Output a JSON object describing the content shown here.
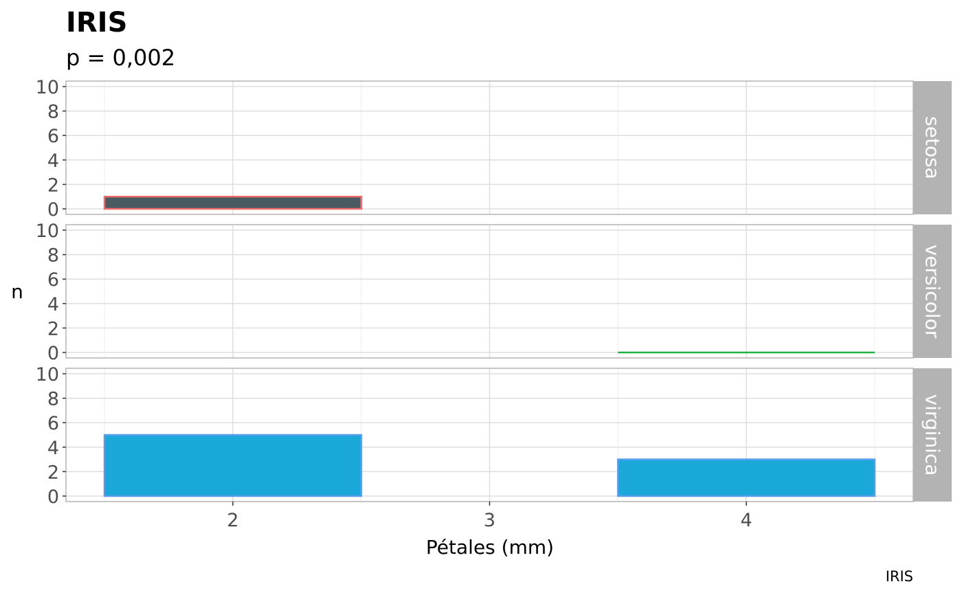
{
  "chart_data": {
    "type": "bar",
    "title": "IRIS",
    "subtitle": "p = 0,002",
    "caption": "IRIS",
    "xlabel": "Pétales (mm)",
    "ylabel": "n",
    "xlim": [
      1.35,
      4.65
    ],
    "ylim": [
      -0.45,
      10.45
    ],
    "x_ticks": [
      2,
      3,
      4
    ],
    "y_ticks": [
      0,
      2,
      4,
      6,
      8,
      10
    ],
    "grid": true,
    "facets": [
      {
        "name": "setosa",
        "fill": "#4a5a61",
        "stroke": "#f06b6b",
        "bars": [
          {
            "x0": 1.5,
            "x1": 2.5,
            "value": 1
          },
          {
            "x0": 3.5,
            "x1": 4.5,
            "value": 0
          }
        ]
      },
      {
        "name": "versicolor",
        "fill": "#33b24a",
        "stroke": "#1eb040",
        "bars": [
          {
            "x0": 1.5,
            "x1": 2.5,
            "value": 0
          },
          {
            "x0": 3.5,
            "x1": 4.5,
            "value": 0
          }
        ]
      },
      {
        "name": "virginica",
        "fill": "#1aa8d8",
        "stroke": "#5a9cf0",
        "bars": [
          {
            "x0": 1.5,
            "x1": 2.5,
            "value": 5
          },
          {
            "x0": 3.5,
            "x1": 4.5,
            "value": 3
          }
        ]
      }
    ]
  }
}
